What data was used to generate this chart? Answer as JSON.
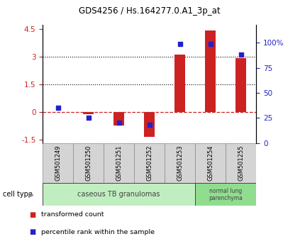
{
  "title": "GDS4256 / Hs.164277.0.A1_3p_at",
  "samples": [
    "GSM501249",
    "GSM501250",
    "GSM501251",
    "GSM501252",
    "GSM501253",
    "GSM501254",
    "GSM501255"
  ],
  "red_values": [
    0.0,
    -0.15,
    -0.75,
    -1.35,
    3.1,
    4.4,
    2.9
  ],
  "blue_pct": [
    35,
    25,
    20,
    18,
    99,
    99,
    88
  ],
  "ylim_left": [
    -1.7,
    4.7
  ],
  "ylim_right": [
    0,
    117.5
  ],
  "yticks_left": [
    -1.5,
    0.0,
    1.5,
    3.0,
    4.5
  ],
  "ytick_labels_left": [
    "-1.5",
    "0",
    "1.5",
    "3",
    "4.5"
  ],
  "yticks_right": [
    0,
    25,
    50,
    75,
    100
  ],
  "ytick_labels_right": [
    "0",
    "25",
    "50",
    "75",
    "100%"
  ],
  "hlines": [
    1.5,
    3.0
  ],
  "dashed_hline": 0.0,
  "bar_width": 0.35,
  "red_color": "#cc2222",
  "blue_color": "#2222cc",
  "group1_label": "caseous TB granulomas",
  "group2_label": "normal lung\nparenchyma",
  "group1_indices": [
    0,
    1,
    2,
    3,
    4
  ],
  "group2_indices": [
    5,
    6
  ],
  "group1_color": "#c0eec0",
  "group2_color": "#90dd90",
  "cell_type_label": "cell type",
  "legend_red": "transformed count",
  "legend_blue": "percentile rank within the sample",
  "blue_marker_size": 22
}
